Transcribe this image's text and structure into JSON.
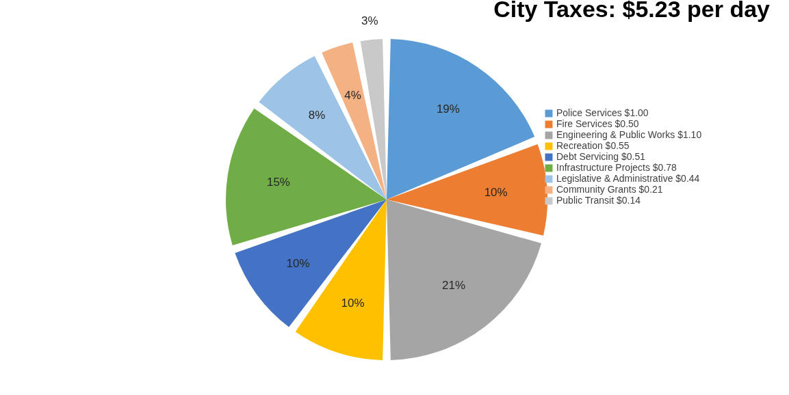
{
  "chart_data": {
    "type": "pie",
    "title": "City Taxes: $5.23 per day",
    "categories": [
      "Police Services $1.00",
      "Fire Services $0.50",
      "Engineering & Public Works  $1.10",
      "Recreation  $0.55",
      "Debt Servicing  $0.51",
      "Infrastructure Projects  $0.78",
      "Legislative & Administrative  $0.44",
      "Community Grants  $0.21",
      "Public Transit  $0.14"
    ],
    "values": [
      19,
      10,
      21,
      10,
      10,
      15,
      8,
      4,
      3
    ],
    "value_labels": [
      "19%",
      "10%",
      "21%",
      "10%",
      "10%",
      "15%",
      "8%",
      "4%",
      "3%"
    ],
    "colors": [
      "#5b9bd5",
      "#ed7d31",
      "#a5a5a5",
      "#ffc000",
      "#4472c4",
      "#70ad47",
      "#9dc3e6",
      "#f4b183",
      "#c9c9c9"
    ],
    "legend": "right"
  }
}
